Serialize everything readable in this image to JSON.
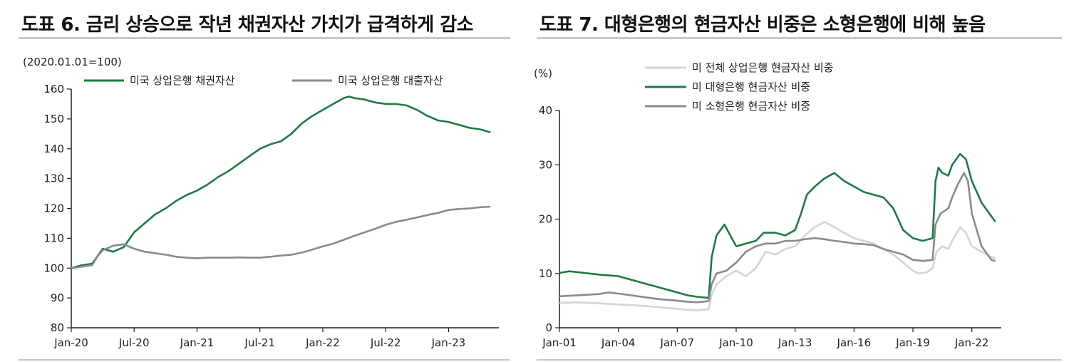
{
  "left": {
    "title": "도표 6. 금리 상승으로 작년 채권자산 가치가 급격하게 감소",
    "chart_data": {
      "type": "line",
      "unit_note": "(2020.01.01=100)",
      "xlabel": "",
      "ylabel": "",
      "ylim": [
        80,
        160
      ],
      "yticks": [
        80,
        90,
        100,
        110,
        120,
        130,
        140,
        150,
        160
      ],
      "xlim": [
        "2020-01",
        "2023-04"
      ],
      "xticks": [
        "Jan-20",
        "Jul-20",
        "Jan-21",
        "Jul-21",
        "Jan-22",
        "Jul-22",
        "Jan-23"
      ],
      "xtick_values": [
        0,
        6,
        12,
        18,
        24,
        30,
        36
      ],
      "legend_position": "top",
      "series": [
        {
          "name": "미국 상업은행 채권자산",
          "color": "#1e7a45",
          "points": [
            [
              0,
              100
            ],
            [
              1,
              101
            ],
            [
              2,
              101.5
            ],
            [
              2.5,
              104
            ],
            [
              3,
              106.5
            ],
            [
              4,
              105.5
            ],
            [
              5,
              107
            ],
            [
              6,
              112
            ],
            [
              7,
              115
            ],
            [
              8,
              118
            ],
            [
              9,
              120
            ],
            [
              10,
              122.5
            ],
            [
              11,
              124.5
            ],
            [
              12,
              126
            ],
            [
              13,
              128
            ],
            [
              14,
              130.5
            ],
            [
              15,
              132.5
            ],
            [
              16,
              135
            ],
            [
              17,
              137.5
            ],
            [
              18,
              140
            ],
            [
              19,
              141.5
            ],
            [
              20,
              142.5
            ],
            [
              21,
              145
            ],
            [
              22,
              148.5
            ],
            [
              23,
              151
            ],
            [
              24,
              153
            ],
            [
              25,
              155
            ],
            [
              26,
              157
            ],
            [
              26.5,
              157.5
            ],
            [
              27,
              157
            ],
            [
              28,
              156.5
            ],
            [
              29,
              155.5
            ],
            [
              30,
              155
            ],
            [
              31,
              155
            ],
            [
              32,
              154.5
            ],
            [
              33,
              153
            ],
            [
              34,
              151
            ],
            [
              35,
              149.5
            ],
            [
              36,
              149
            ],
            [
              37,
              148
            ],
            [
              38,
              147
            ],
            [
              39,
              146.5
            ],
            [
              40,
              145.5
            ]
          ]
        },
        {
          "name": "미국 상업은행 대출자산",
          "color": "#8a8a8a",
          "points": [
            [
              0,
              100
            ],
            [
              1,
              100.5
            ],
            [
              2,
              101
            ],
            [
              2.5,
              104
            ],
            [
              3,
              106
            ],
            [
              4,
              107.5
            ],
            [
              5,
              108
            ],
            [
              6,
              106.5
            ],
            [
              7,
              105.5
            ],
            [
              8,
              105
            ],
            [
              9,
              104.5
            ],
            [
              10,
              103.8
            ],
            [
              11,
              103.5
            ],
            [
              12,
              103.3
            ],
            [
              13,
              103.5
            ],
            [
              14,
              103.5
            ],
            [
              15,
              103.5
            ],
            [
              16,
              103.6
            ],
            [
              17,
              103.5
            ],
            [
              18,
              103.5
            ],
            [
              19,
              103.8
            ],
            [
              20,
              104.2
            ],
            [
              21,
              104.5
            ],
            [
              22,
              105.2
            ],
            [
              23,
              106.2
            ],
            [
              24,
              107.3
            ],
            [
              25,
              108.2
            ],
            [
              26,
              109.5
            ],
            [
              27,
              110.8
            ],
            [
              28,
              112
            ],
            [
              29,
              113.2
            ],
            [
              30,
              114.5
            ],
            [
              31,
              115.5
            ],
            [
              32,
              116.2
            ],
            [
              33,
              117
            ],
            [
              34,
              117.8
            ],
            [
              35,
              118.5
            ],
            [
              36,
              119.5
            ],
            [
              37,
              119.8
            ],
            [
              38,
              120
            ],
            [
              39,
              120.4
            ],
            [
              40,
              120.6
            ]
          ]
        }
      ]
    }
  },
  "right": {
    "title": "도표 7. 대형은행의 현금자산 비중은 소형은행에 비해 높음",
    "chart_data": {
      "type": "line",
      "unit_note": "(%)",
      "xlabel": "",
      "ylabel": "",
      "ylim": [
        0,
        40
      ],
      "yticks": [
        0,
        10,
        20,
        30,
        40
      ],
      "xlim": [
        2001,
        2023.5
      ],
      "xticks": [
        "Jan-01",
        "Jan-04",
        "Jan-07",
        "Jan-10",
        "Jan-13",
        "Jan-16",
        "Jan-19",
        "Jan-22"
      ],
      "xtick_values": [
        2001,
        2004,
        2007,
        2010,
        2013,
        2016,
        2019,
        2022
      ],
      "legend_position": "top",
      "series": [
        {
          "name": "미 전체 상업은행 현금자산 비중",
          "color": "#d4d4d4",
          "points": [
            [
              2001,
              4.6
            ],
            [
              2002,
              4.7
            ],
            [
              2003,
              4.5
            ],
            [
              2004,
              4.3
            ],
            [
              2005,
              4.1
            ],
            [
              2006,
              3.8
            ],
            [
              2007,
              3.5
            ],
            [
              2007.5,
              3.3
            ],
            [
              2008,
              3.2
            ],
            [
              2008.6,
              3.4
            ],
            [
              2008.75,
              6
            ],
            [
              2009,
              8
            ],
            [
              2009.5,
              9.5
            ],
            [
              2010,
              10.5
            ],
            [
              2010.5,
              9.5
            ],
            [
              2011,
              11
            ],
            [
              2011.5,
              14
            ],
            [
              2012,
              13.5
            ],
            [
              2012.5,
              14.5
            ],
            [
              2013,
              15
            ],
            [
              2013.5,
              17
            ],
            [
              2014,
              18.5
            ],
            [
              2014.5,
              19.5
            ],
            [
              2015,
              18.5
            ],
            [
              2015.5,
              17.5
            ],
            [
              2016,
              16.5
            ],
            [
              2016.5,
              16
            ],
            [
              2017,
              15.5
            ],
            [
              2017.5,
              14.5
            ],
            [
              2018,
              13.5
            ],
            [
              2018.5,
              12
            ],
            [
              2019,
              10.5
            ],
            [
              2019.3,
              10
            ],
            [
              2019.7,
              10.2
            ],
            [
              2020,
              11
            ],
            [
              2020.2,
              14
            ],
            [
              2020.5,
              15
            ],
            [
              2020.8,
              14.5
            ],
            [
              2021,
              16
            ],
            [
              2021.4,
              18.5
            ],
            [
              2021.7,
              17.5
            ],
            [
              2022,
              15
            ],
            [
              2022.5,
              14
            ],
            [
              2023,
              13
            ],
            [
              2023.2,
              12.8
            ]
          ]
        },
        {
          "name": "미 대형은행 현금자산 비중",
          "color": "#1e7a45",
          "points": [
            [
              2001,
              10.1
            ],
            [
              2001.5,
              10.4
            ],
            [
              2002,
              10.2
            ],
            [
              2003,
              9.8
            ],
            [
              2004,
              9.5
            ],
            [
              2005,
              8.5
            ],
            [
              2006,
              7.5
            ],
            [
              2007,
              6.5
            ],
            [
              2007.5,
              6
            ],
            [
              2008,
              5.7
            ],
            [
              2008.6,
              5.5
            ],
            [
              2008.75,
              13
            ],
            [
              2009,
              17
            ],
            [
              2009.4,
              19
            ],
            [
              2009.7,
              17
            ],
            [
              2010,
              15
            ],
            [
              2010.5,
              15.5
            ],
            [
              2011,
              16
            ],
            [
              2011.4,
              17.5
            ],
            [
              2012,
              17.5
            ],
            [
              2012.5,
              17
            ],
            [
              2013,
              18
            ],
            [
              2013.3,
              21
            ],
            [
              2013.6,
              24.5
            ],
            [
              2014,
              26
            ],
            [
              2014.5,
              27.5
            ],
            [
              2015,
              28.5
            ],
            [
              2015.5,
              27
            ],
            [
              2016,
              26
            ],
            [
              2016.5,
              25
            ],
            [
              2017,
              24.5
            ],
            [
              2017.5,
              24
            ],
            [
              2018,
              22
            ],
            [
              2018.5,
              18
            ],
            [
              2019,
              16.5
            ],
            [
              2019.5,
              16
            ],
            [
              2020,
              16.5
            ],
            [
              2020.15,
              27
            ],
            [
              2020.3,
              29.5
            ],
            [
              2020.5,
              28.5
            ],
            [
              2020.8,
              28
            ],
            [
              2021,
              30
            ],
            [
              2021.4,
              32
            ],
            [
              2021.7,
              31
            ],
            [
              2022,
              27
            ],
            [
              2022.5,
              23
            ],
            [
              2023,
              20.5
            ],
            [
              2023.2,
              19.5
            ]
          ]
        },
        {
          "name": "미 소형은행 현금자산 비중",
          "color": "#8a8a8a",
          "points": [
            [
              2001,
              5.8
            ],
            [
              2002,
              6
            ],
            [
              2003,
              6.2
            ],
            [
              2003.5,
              6.5
            ],
            [
              2004,
              6.3
            ],
            [
              2005,
              5.8
            ],
            [
              2006,
              5.3
            ],
            [
              2007,
              5
            ],
            [
              2007.5,
              4.8
            ],
            [
              2008,
              4.7
            ],
            [
              2008.6,
              4.9
            ],
            [
              2008.75,
              8
            ],
            [
              2009,
              10
            ],
            [
              2009.5,
              10.5
            ],
            [
              2010,
              12
            ],
            [
              2010.5,
              14
            ],
            [
              2011,
              15
            ],
            [
              2011.5,
              15.5
            ],
            [
              2012,
              15.5
            ],
            [
              2012.5,
              16
            ],
            [
              2013,
              16
            ],
            [
              2013.5,
              16.3
            ],
            [
              2014,
              16.5
            ],
            [
              2014.5,
              16.3
            ],
            [
              2015,
              16
            ],
            [
              2015.5,
              15.8
            ],
            [
              2016,
              15.5
            ],
            [
              2016.5,
              15.4
            ],
            [
              2017,
              15.2
            ],
            [
              2017.5,
              14.5
            ],
            [
              2018,
              14
            ],
            [
              2018.5,
              13.5
            ],
            [
              2019,
              12.5
            ],
            [
              2019.5,
              12.3
            ],
            [
              2020,
              12.5
            ],
            [
              2020.15,
              19
            ],
            [
              2020.4,
              21
            ],
            [
              2020.8,
              22
            ],
            [
              2021,
              24
            ],
            [
              2021.3,
              26.5
            ],
            [
              2021.6,
              28.5
            ],
            [
              2021.8,
              27
            ],
            [
              2022,
              21
            ],
            [
              2022.5,
              15
            ],
            [
              2023,
              12.5
            ],
            [
              2023.2,
              12.3
            ]
          ]
        }
      ]
    }
  }
}
